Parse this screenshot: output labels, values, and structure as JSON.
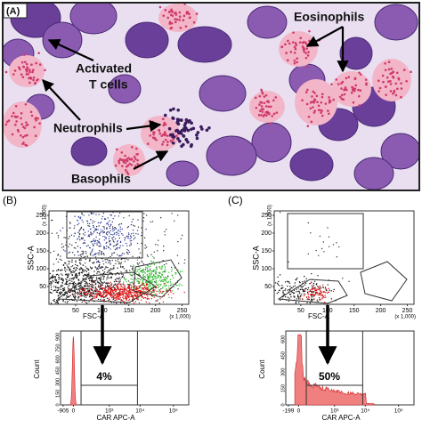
{
  "panel_a": {
    "label": "(A)",
    "annotations": {
      "eosinophils": "Eosinophils",
      "t_cells": [
        "Activated",
        "T cells"
      ],
      "neutrophils": "Neutrophils",
      "basophils": "Basophils"
    }
  },
  "panel_b": {
    "label": "(B)",
    "scatter": {
      "y_axis": "SSC-A",
      "y_unit": "(x 1,000)",
      "y_ticks": [
        "50",
        "100",
        "150",
        "200",
        "250"
      ],
      "x_axis": "FSC-A",
      "x_unit": "(x 1,000)",
      "x_ticks": [
        "50",
        "100",
        "150",
        "200",
        "250"
      ]
    },
    "histogram": {
      "y_axis": "Count",
      "y_ticks": [
        "0",
        "150",
        "300",
        "450",
        "600",
        "750",
        "900"
      ],
      "x_axis": "CAR APC-A",
      "x_ticks": [
        "-905",
        "0",
        "10³",
        "10⁴",
        "10⁵"
      ],
      "gate_percent": "4%"
    }
  },
  "panel_c": {
    "label": "(C)",
    "scatter": {
      "y_axis": "SSC-A",
      "y_unit": "(x 1,000)",
      "y_ticks": [
        "50",
        "100",
        "150",
        "200",
        "250"
      ],
      "x_axis": "FSC-A",
      "x_unit": "(x 1,000)",
      "x_ticks": [
        "50",
        "100",
        "150",
        "200",
        "250"
      ]
    },
    "histogram": {
      "y_axis": "Count",
      "y_ticks": [
        "0",
        "150",
        "300",
        "450",
        "600"
      ],
      "x_axis": "CAR APC-A",
      "x_ticks": [
        "-199",
        "0",
        "10³",
        "10⁴",
        "10⁵"
      ],
      "gate_percent": "50%"
    }
  }
}
